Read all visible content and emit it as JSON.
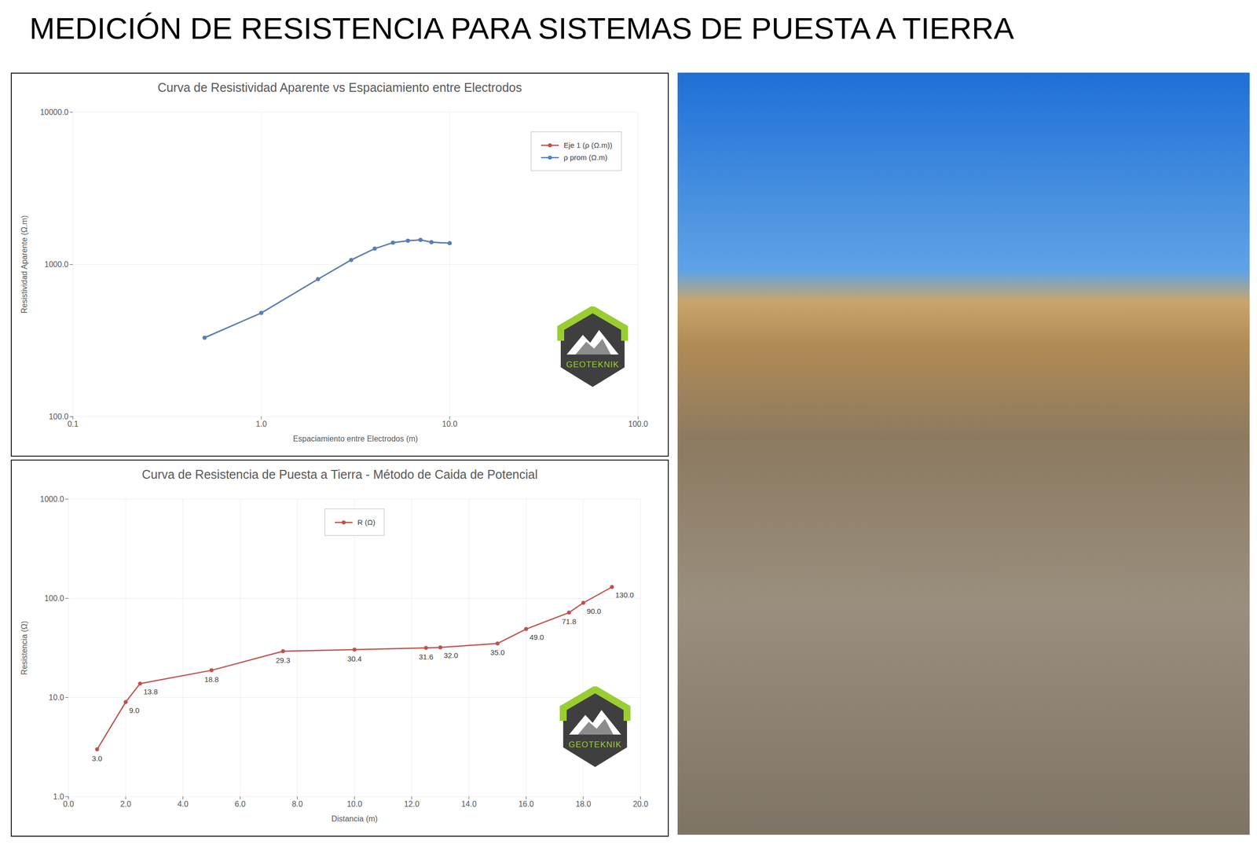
{
  "title": "MEDICIÓN DE RESISTENCIA PARA SISTEMAS DE PUESTA A TIERRA",
  "logo": "GEOTEKNIK",
  "chart_data": [
    {
      "type": "line",
      "title": "Curva de Resistividad Aparente vs Espaciamiento entre Electrodos",
      "x_label": "Espaciamiento entre Electrodos (m)",
      "y_label": "Resistividad Aparente (Ω.m)",
      "log": true,
      "grid": true,
      "legend": "top-right",
      "x": [
        0.5,
        1,
        2,
        3,
        4,
        5,
        6,
        7,
        8,
        10
      ],
      "series": [
        {
          "name": "Eje 1 (ρ (Ω.m))",
          "color": "#c0504d",
          "marker": "circle",
          "values": [
            330,
            480,
            800,
            1070,
            1270,
            1390,
            1430,
            1450,
            1400,
            1380
          ]
        },
        {
          "name": "ρ prom (Ω.m)",
          "color": "#4f81bd",
          "marker": "circle",
          "values": [
            330,
            480,
            800,
            1070,
            1270,
            1390,
            1430,
            1450,
            1400,
            1380
          ]
        }
      ],
      "xlim": [
        0.1,
        100
      ],
      "xticks": [
        0.1,
        {
          "value": 1,
          "label": "1.0"
        },
        {
          "value": 10,
          "label": "10.0"
        },
        {
          "value": 100,
          "label": "100.0"
        }
      ],
      "ylim": [
        100,
        10000
      ],
      "yticks": [
        {
          "value": 100,
          "label": "100.0"
        },
        {
          "value": 1000,
          "label": "1000.0"
        },
        {
          "value": 10000,
          "label": "10000.0"
        }
      ]
    },
    {
      "type": "line",
      "title": "Curva de Resistencia de Puesta a Tierra - Método de Caida de Potencial",
      "x_label": "Distancia (m)",
      "y_label": "Resistencia (Ω)",
      "log": "y",
      "grid": true,
      "legend": "top",
      "data_labels": true,
      "x": [
        1,
        2,
        2.5,
        5,
        7.5,
        10,
        12.5,
        13,
        15,
        16,
        17.5,
        18,
        19
      ],
      "series": [
        {
          "name": "R (Ω)",
          "color": "#c0504d",
          "marker": "circle",
          "values": [
            3,
            9,
            13.8,
            18.8,
            29.3,
            30.4,
            31.6,
            32,
            35,
            49,
            71.8,
            90,
            130
          ],
          "value_labels": [
            "3.0",
            "9.0",
            "13.8",
            "18.8",
            "29.3",
            "30.4",
            "31.6",
            "32.0",
            "35.0",
            "49.0",
            "71.8",
            "90.0",
            "130.0"
          ]
        }
      ],
      "xlim": [
        0,
        20
      ],
      "xticks": [
        {
          "value": 0,
          "label": "0.0"
        },
        {
          "value": 2,
          "label": "2.0"
        },
        {
          "value": 4,
          "label": "4.0"
        },
        {
          "value": 6,
          "label": "6.0"
        },
        {
          "value": 8,
          "label": "8.0"
        },
        {
          "value": 10,
          "label": "10.0"
        },
        {
          "value": 12,
          "label": "12.0"
        },
        {
          "value": 14,
          "label": "14.0"
        },
        {
          "value": 16,
          "label": "16.0"
        },
        {
          "value": 18,
          "label": "18.0"
        },
        {
          "value": 20,
          "label": "20.0"
        }
      ],
      "ylim": [
        1,
        1000
      ],
      "yticks": [
        {
          "value": 1,
          "label": "1.0"
        },
        {
          "value": 10,
          "label": "10.0"
        },
        {
          "value": 100,
          "label": "100.0"
        },
        {
          "value": 1000,
          "label": "1000.0"
        }
      ]
    }
  ]
}
